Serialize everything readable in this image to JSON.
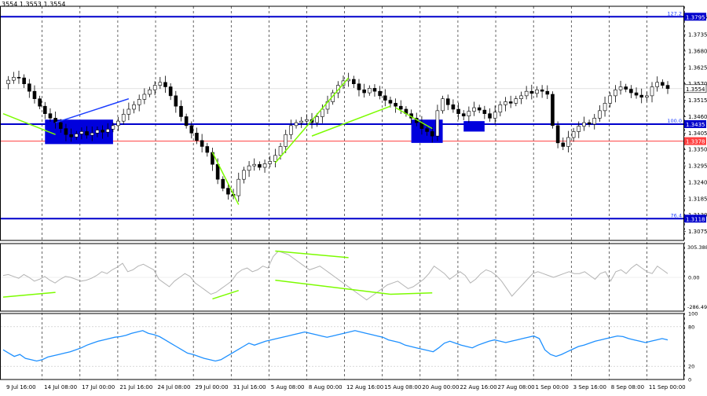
{
  "header": {
    "ohlc_text": "3554 1.3553 1.3554"
  },
  "chart_data": [
    {
      "type": "candlestick",
      "panel": "price",
      "y_ticks": [
        "1.3795",
        "1.3735",
        "1.3680",
        "1.3625",
        "1.3570",
        "1.3515",
        "1.3460",
        "1.3405",
        "1.3350",
        "1.3295",
        "1.3240",
        "1.3185",
        "1.3130",
        "1.3075"
      ],
      "ylim": [
        1.3045,
        1.383
      ],
      "x_ticks": [
        "9 Jul 16:00",
        "14 Jul 08:00",
        "17 Jul 00:00",
        "21 Jul 16:00",
        "24 Jul 08:00",
        "29 Jul 00:00",
        "31 Jul 16:00",
        "5 Aug 08:00",
        "8 Aug 00:00",
        "12 Aug 16:00",
        "15 Aug 08:00",
        "20 Aug 00:00",
        "22 Aug 16:00",
        "27 Aug 08:00",
        "1 Sep 00:00",
        "3 Sep 16:00",
        "8 Sep 08:00",
        "11 Sep 00:00"
      ],
      "grid": true,
      "close_series": [
        1.357,
        1.3582,
        1.3592,
        1.359,
        1.357,
        1.3545,
        1.352,
        1.3495,
        1.347,
        1.3455,
        1.344,
        1.342,
        1.34,
        1.3392,
        1.3402,
        1.341,
        1.3398,
        1.3405,
        1.3415,
        1.3408,
        1.3418,
        1.343,
        1.3445,
        1.3468,
        1.3485,
        1.35,
        1.3518,
        1.3535,
        1.355,
        1.3565,
        1.3575,
        1.356,
        1.353,
        1.3495,
        1.346,
        1.343,
        1.3405,
        1.338,
        1.336,
        1.334,
        1.33,
        1.325,
        1.322,
        1.32,
        1.3195,
        1.325,
        1.328,
        1.3295,
        1.33,
        1.329,
        1.3302,
        1.331,
        1.333,
        1.336,
        1.34,
        1.343,
        1.344,
        1.3445,
        1.345,
        1.344,
        1.346,
        1.3485,
        1.351,
        1.354,
        1.3565,
        1.358,
        1.3585,
        1.357,
        1.355,
        1.354,
        1.3555,
        1.3545,
        1.353,
        1.3515,
        1.3505,
        1.3495,
        1.3485,
        1.347,
        1.3455,
        1.344,
        1.342,
        1.341,
        1.3395,
        1.348,
        1.352,
        1.35,
        1.3485,
        1.347,
        1.3462,
        1.3478,
        1.349,
        1.3482,
        1.347,
        1.3455,
        1.3475,
        1.35,
        1.351,
        1.3505,
        1.352,
        1.353,
        1.3545,
        1.3538,
        1.355,
        1.3545,
        1.3535,
        1.343,
        1.3372,
        1.336,
        1.339,
        1.341,
        1.3428,
        1.344,
        1.3435,
        1.3455,
        1.348,
        1.3505,
        1.353,
        1.355,
        1.356,
        1.3552,
        1.354,
        1.3532,
        1.3525,
        1.353,
        1.356,
        1.3575,
        1.3565,
        1.3554
      ],
      "horizontal_levels": [
        {
          "price": 1.3795,
          "label": "127.2",
          "price_label": "1.3795",
          "color": "#0000cc"
        },
        {
          "price": 1.3435,
          "label": "100.0",
          "price_label": "1.3435",
          "color": "#0000cc"
        },
        {
          "price": 1.3378,
          "label": "",
          "price_label": "1.3378",
          "color": "#ff4040"
        },
        {
          "price": 1.3118,
          "label": "76.4",
          "price_label": "1.3118",
          "color": "#0000cc"
        }
      ],
      "current_price": "1.3554",
      "trend_lines": [
        {
          "color": "#7cfc00",
          "points": [
            [
              0,
              1.347
            ],
            [
              10,
              1.34
            ]
          ]
        },
        {
          "color": "#1a3cff",
          "points": [
            [
              10,
              1.344
            ],
            [
              24,
              1.352
            ]
          ]
        },
        {
          "color": "#7cfc00",
          "points": [
            [
              40,
              1.334
            ],
            [
              45,
              1.3165
            ]
          ]
        },
        {
          "color": "#7cfc00",
          "points": [
            [
              52,
              1.3305
            ],
            [
              66,
              1.359
            ]
          ]
        },
        {
          "color": "#7cfc00",
          "points": [
            [
              59,
              1.3395
            ],
            [
              74,
              1.3495
            ]
          ]
        },
        {
          "color": "#7cfc00",
          "points": [
            [
              75,
              1.349
            ],
            [
              82,
              1.342
            ]
          ]
        }
      ],
      "zones": [
        {
          "from": 8,
          "to": 21,
          "top": 1.345,
          "bottom": 1.3368
        },
        {
          "from": 78,
          "to": 84,
          "top": 1.345,
          "bottom": 1.3372
        },
        {
          "from": 88,
          "to": 92,
          "top": 1.3445,
          "bottom": 1.341
        }
      ]
    },
    {
      "type": "line",
      "panel": "oscillator",
      "label_top": "305.3886",
      "label_mid": "0.00",
      "label_bot": "-286.493",
      "ylim": [
        -360,
        360
      ],
      "color": "#b4b4b4",
      "values": [
        20,
        30,
        10,
        -10,
        30,
        0,
        -40,
        -20,
        10,
        -30,
        -60,
        -20,
        10,
        0,
        -20,
        -40,
        -30,
        -10,
        20,
        60,
        40,
        80,
        110,
        150,
        60,
        80,
        120,
        140,
        110,
        80,
        -20,
        -60,
        -100,
        -40,
        0,
        40,
        10,
        -60,
        -100,
        -140,
        -180,
        -160,
        -120,
        -80,
        -40,
        40,
        80,
        100,
        60,
        80,
        120,
        100,
        220,
        280,
        260,
        240,
        200,
        160,
        120,
        80,
        100,
        120,
        80,
        40,
        0,
        -40,
        -80,
        -120,
        -160,
        -200,
        -240,
        -200,
        -160,
        -120,
        -80,
        -60,
        -40,
        -80,
        -120,
        -100,
        -60,
        -20,
        40,
        120,
        80,
        40,
        -20,
        20,
        60,
        20,
        -60,
        -20,
        40,
        80,
        60,
        20,
        -40,
        -120,
        -200,
        -140,
        -80,
        -20,
        40,
        60,
        40,
        20,
        0,
        20,
        40,
        60,
        40,
        40,
        60,
        20,
        -20,
        40,
        60,
        -40,
        60,
        80,
        40,
        100,
        140,
        100,
        60,
        40,
        120,
        80,
        40
      ],
      "divergence_lines": [
        {
          "color": "#7cfc00",
          "points": [
            [
              0,
              -210
            ],
            [
              10,
              -160
            ]
          ]
        },
        {
          "color": "#7cfc00",
          "points": [
            [
              40,
              -230
            ],
            [
              45,
              -140
            ]
          ]
        },
        {
          "color": "#7cfc00",
          "points": [
            [
              52,
              280
            ],
            [
              66,
              210
            ]
          ]
        },
        {
          "color": "#7cfc00",
          "points": [
            [
              52,
              -30
            ],
            [
              74,
              -180
            ]
          ]
        },
        {
          "color": "#7cfc00",
          "points": [
            [
              74,
              -180
            ],
            [
              82,
              -165
            ]
          ]
        }
      ]
    },
    {
      "type": "line",
      "panel": "rsi",
      "y_labels": [
        "100",
        "80",
        "20",
        "0"
      ],
      "levels": [
        80,
        20
      ],
      "ylim": [
        0,
        100
      ],
      "color": "#1e90ff",
      "values": [
        45,
        40,
        35,
        38,
        32,
        30,
        28,
        30,
        34,
        36,
        38,
        40,
        42,
        45,
        48,
        52,
        55,
        58,
        60,
        62,
        64,
        65,
        67,
        70,
        72,
        74,
        70,
        68,
        65,
        60,
        55,
        50,
        45,
        40,
        38,
        35,
        32,
        30,
        28,
        30,
        35,
        40,
        45,
        50,
        55,
        52,
        55,
        58,
        60,
        62,
        64,
        66,
        68,
        70,
        72,
        70,
        68,
        66,
        64,
        66,
        68,
        70,
        72,
        74,
        72,
        70,
        68,
        66,
        64,
        60,
        58,
        56,
        52,
        50,
        48,
        46,
        44,
        42,
        48,
        55,
        58,
        55,
        52,
        50,
        48,
        52,
        55,
        58,
        60,
        58,
        56,
        58,
        60,
        62,
        64,
        66,
        62,
        45,
        38,
        35,
        38,
        42,
        46,
        50,
        52,
        55,
        58,
        60,
        62,
        64,
        66,
        65,
        62,
        60,
        58,
        56,
        58,
        60,
        62,
        60
      ],
      "text_labels": []
    }
  ]
}
